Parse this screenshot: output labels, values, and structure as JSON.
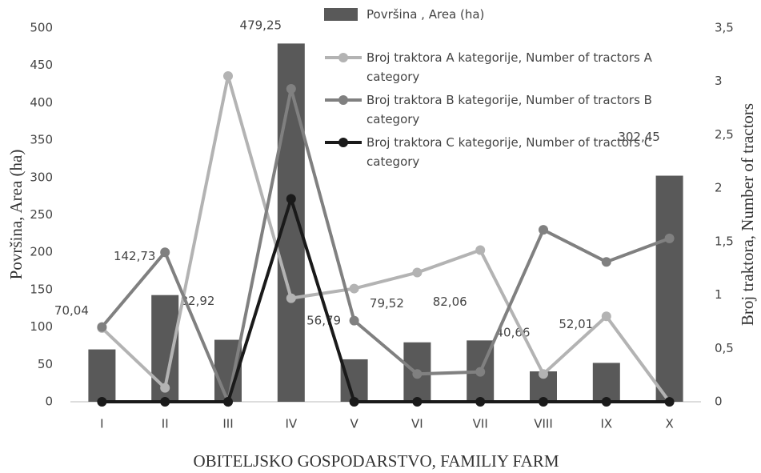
{
  "chart_data": {
    "type": "bar_line",
    "x_label": "OBITELJSKO GOSPODARSTVO, FAMILIY FARM",
    "y_label": "Površina, Area (ha)",
    "y2_label": "Broj traktora, Number of tractors",
    "categories": [
      "I",
      "II",
      "III",
      "IV",
      "V",
      "VI",
      "VII",
      "VIII",
      "IX",
      "X"
    ],
    "ylim": [
      0,
      500
    ],
    "yticks": [
      0,
      50,
      100,
      150,
      200,
      250,
      300,
      350,
      400,
      450,
      500
    ],
    "y2lim": [
      0,
      3.5
    ],
    "y2ticks": [
      0,
      {
        "value": 0.5,
        "label": "0,5"
      },
      1,
      {
        "value": 1.5,
        "label": "1,5"
      },
      2,
      {
        "value": 2.5,
        "label": "2,5"
      },
      3,
      {
        "value": 3.5,
        "label": "3,5"
      }
    ],
    "series": [
      {
        "name": "Površina , Area (ha)",
        "kind": "bar",
        "color": "#595959",
        "values": [
          70.04,
          142.73,
          82.92,
          479.25,
          56.79,
          79.52,
          82.06,
          40.66,
          52.01,
          302.45
        ],
        "value_labels": [
          "70,04",
          "142,73",
          "82,92",
          "479,25",
          "56,79",
          "79,52",
          "82,06",
          "40,66",
          "52,01",
          "302,45"
        ]
      },
      {
        "name": "Broj traktora A kategorije, Number of tractors A category",
        "kind": "line",
        "axis": "y2",
        "color": "#b3b3b3",
        "values": [
          0.69,
          0.13,
          3.05,
          0.97,
          1.06,
          1.21,
          1.42,
          0.26,
          0.8,
          0
        ]
      },
      {
        "name": "Broj traktora B kategorije, Number of tractors B category",
        "kind": "line",
        "axis": "y2",
        "color": "#808080",
        "values": [
          0.7,
          1.4,
          0,
          2.93,
          0.76,
          0.26,
          0.28,
          1.61,
          1.31,
          1.53
        ]
      },
      {
        "name": "Broj traktora C kategorije, Number of tractors C category",
        "kind": "line",
        "axis": "y2",
        "color": "#1a1a1a",
        "values": [
          0,
          0,
          0,
          1.9,
          0,
          0,
          0,
          0,
          0,
          0
        ]
      }
    ]
  }
}
